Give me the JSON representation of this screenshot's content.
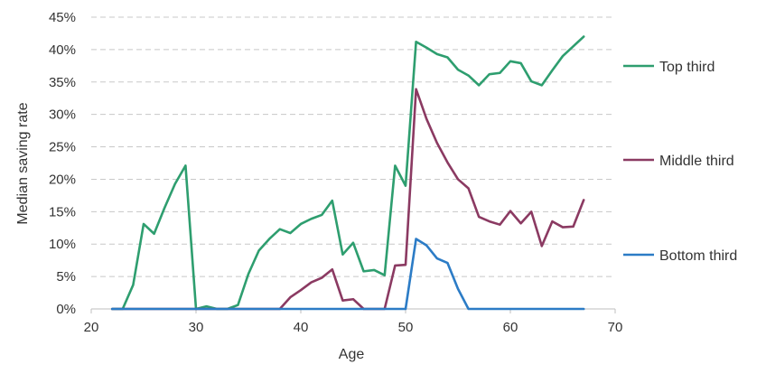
{
  "chart_data": {
    "type": "line",
    "xlabel": "Age",
    "ylabel": "Median saving rate",
    "xlim": [
      20,
      70
    ],
    "ylim": [
      0,
      45
    ],
    "x_ticks": [
      "20",
      "30",
      "40",
      "50",
      "60",
      "70"
    ],
    "y_ticks": [
      "0%",
      "5%",
      "10%",
      "15%",
      "20%",
      "25%",
      "30%",
      "35%",
      "40%",
      "45%"
    ],
    "grid": "horizontal dashed",
    "legend_position": "right",
    "x": [
      22,
      23,
      24,
      25,
      26,
      27,
      28,
      29,
      30,
      31,
      32,
      33,
      34,
      35,
      36,
      37,
      38,
      39,
      40,
      41,
      42,
      43,
      44,
      45,
      46,
      47,
      48,
      49,
      50,
      51,
      52,
      53,
      54,
      55,
      56,
      57,
      58,
      59,
      60,
      61,
      62,
      63,
      64,
      65,
      66,
      67
    ],
    "series": [
      {
        "name": "Top third",
        "color": "#2e9e6f",
        "values": [
          0,
          0,
          3.7,
          13.1,
          11.6,
          15.6,
          19.3,
          22.1,
          0,
          0.4,
          0,
          0,
          0.6,
          5.4,
          9,
          10.8,
          12.3,
          11.7,
          13.1,
          13.9,
          14.5,
          16.7,
          8.4,
          10.2,
          5.8,
          6,
          5.2,
          22.1,
          19,
          41.2,
          40.3,
          39.3,
          38.8,
          36.9,
          36,
          34.5,
          36.2,
          36.4,
          38.2,
          37.9,
          35.1,
          34.5,
          36.8,
          39,
          40.5,
          42
        ]
      },
      {
        "name": "Middle third",
        "color": "#8b3a62",
        "values": [
          0,
          0,
          0,
          0,
          0,
          0,
          0,
          0,
          0,
          0,
          0,
          0,
          0,
          0,
          0,
          0,
          0,
          1.8,
          2.9,
          4.1,
          4.8,
          6.1,
          1.3,
          1.5,
          0,
          0,
          0,
          6.7,
          6.8,
          33.9,
          29.3,
          25.6,
          22.6,
          20,
          18.6,
          14.2,
          13.5,
          13,
          15.1,
          13.2,
          15,
          9.7,
          13.5,
          12.6,
          12.7,
          16.8
        ]
      },
      {
        "name": "Bottom third",
        "color": "#2c7cc6",
        "values": [
          0,
          0,
          0,
          0,
          0,
          0,
          0,
          0,
          0,
          0,
          0,
          0,
          0,
          0,
          0,
          0,
          0,
          0,
          0,
          0,
          0,
          0,
          0,
          0,
          0,
          0,
          0,
          0,
          0,
          10.8,
          9.8,
          7.8,
          7.1,
          3.1,
          0,
          0,
          0,
          0,
          0,
          0,
          0,
          0,
          0,
          0,
          0,
          0
        ]
      }
    ]
  }
}
